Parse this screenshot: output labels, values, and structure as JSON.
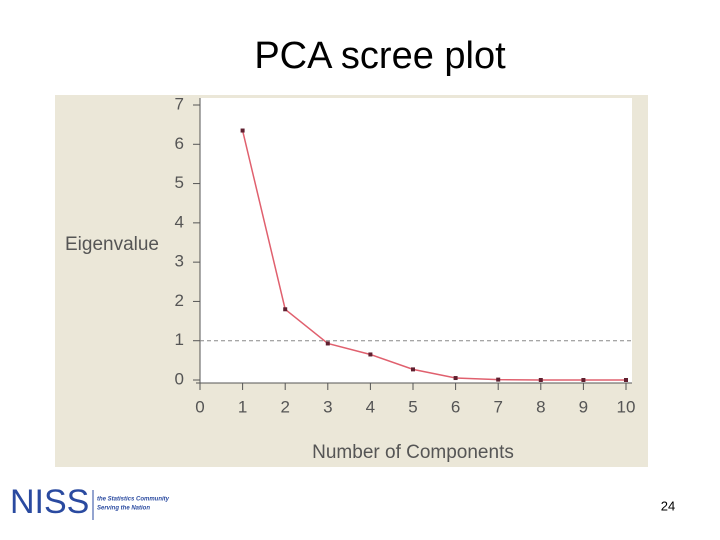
{
  "chart_data": {
    "type": "line",
    "title": "PCA scree plot",
    "x_label": "Number of Components",
    "y_label": "Eigenvalue",
    "x": [
      1,
      2,
      3,
      4,
      5,
      6,
      7,
      8,
      9,
      10
    ],
    "series": [
      {
        "color": "#e0606e",
        "values": [
          6.35,
          1.8,
          0.93,
          0.65,
          0.27,
          0.05,
          0.01,
          0.0,
          0.0,
          0.0
        ]
      }
    ],
    "xlim": [
      0,
      10
    ],
    "xticks": [
      0,
      1,
      2,
      3,
      4,
      5,
      6,
      7,
      8,
      9,
      10
    ],
    "ylim": [
      0,
      7
    ],
    "yticks": [
      0,
      1,
      2,
      3,
      4,
      5,
      6,
      7
    ],
    "reference_line": 1
  },
  "footer": {
    "logo": "NISS",
    "tagline": [
      "the Statistics Community",
      "Serving the Nation"
    ],
    "page_number": "24"
  }
}
